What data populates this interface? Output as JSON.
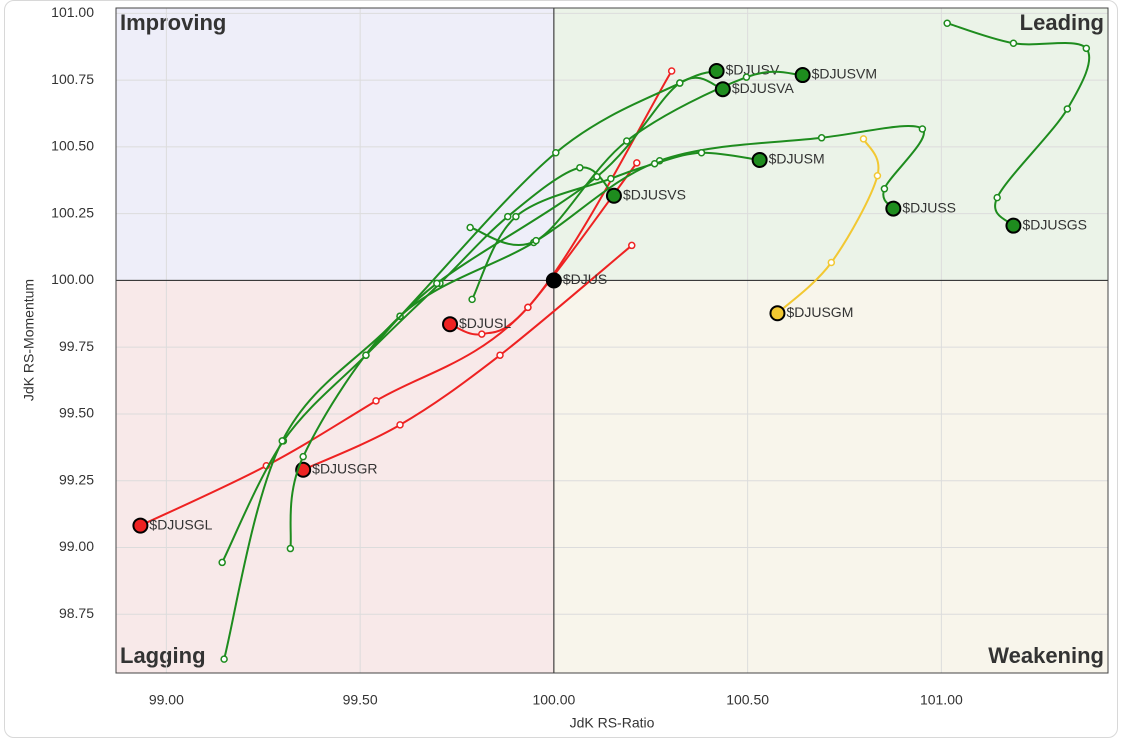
{
  "chart_data": {
    "type": "scatter",
    "xlabel": "JdK RS-Ratio",
    "ylabel": "JdK RS-Momentum",
    "xlim": [
      98.87,
      101.43
    ],
    "ylim": [
      98.53,
      101.02
    ],
    "xticks": [
      {
        "value": 99,
        "label": "99.00"
      },
      {
        "value": 99.5,
        "label": "99.50"
      },
      {
        "value": 100,
        "label": "100.00"
      },
      {
        "value": 100.5,
        "label": "100.50"
      },
      {
        "value": 101,
        "label": "101.00"
      }
    ],
    "yticks": [
      {
        "value": 98.75,
        "label": "98.75"
      },
      {
        "value": 99,
        "label": "99.00"
      },
      {
        "value": 99.25,
        "label": "99.25"
      },
      {
        "value": 99.5,
        "label": "99.50"
      },
      {
        "value": 99.75,
        "label": "99.75"
      },
      {
        "value": 100,
        "label": "100.00"
      },
      {
        "value": 100.25,
        "label": "100.25"
      },
      {
        "value": 100.5,
        "label": "100.50"
      },
      {
        "value": 100.75,
        "label": "100.75"
      },
      {
        "value": 101,
        "label": "101.00"
      }
    ],
    "grid": true,
    "center": [
      100,
      100
    ],
    "quadrants": [
      {
        "label": "Improving",
        "corner": "top-left",
        "color": "#a3a8f2",
        "fill": "#eeeef9"
      },
      {
        "label": "Leading",
        "corner": "top-right",
        "color": "#7cc27c",
        "fill": "#ebf3e8"
      },
      {
        "label": "Lagging",
        "corner": "bottom-left",
        "color": "#f4a0a0",
        "fill": "#f8e9e9"
      },
      {
        "label": "Weakening",
        "corner": "bottom-right",
        "color": "#f2cd45",
        "fill": "#f8f5eb"
      }
    ],
    "series": [
      {
        "name": "$DJUSGL",
        "color": "#ee2222",
        "x": [
          100.304,
          99.933,
          99.541,
          99.258,
          98.933
        ],
        "y": [
          100.784,
          99.899,
          99.549,
          99.306,
          99.082
        ]
      },
      {
        "name": "$DJUSGR",
        "color": "#ee2222",
        "x": [
          100.201,
          99.861,
          99.603,
          99.353
        ],
        "y": [
          100.131,
          99.72,
          99.459,
          99.291
        ]
      },
      {
        "name": "$DJUSL",
        "color": "#ee2222",
        "x": [
          100.214,
          99.933,
          99.814,
          99.732
        ],
        "y": [
          100.44,
          99.899,
          99.799,
          99.836
        ]
      },
      {
        "name": "$DJUS",
        "color": "#000000",
        "x": [
          100
        ],
        "y": [
          100
        ]
      },
      {
        "name": "$DJUSGM",
        "color": "#f2c832",
        "x": [
          100.799,
          100.835,
          100.716,
          100.577
        ],
        "y": [
          100.53,
          100.392,
          100.067,
          99.877
        ]
      },
      {
        "name": "$DJUSGS",
        "color": "#1e8c1e",
        "x": [
          101.015,
          101.186,
          101.374,
          101.325,
          101.144,
          101.186
        ],
        "y": [
          100.963,
          100.888,
          100.869,
          100.642,
          100.31,
          100.205
        ]
      },
      {
        "name": "$DJUSS",
        "color": "#1e8c1e",
        "x": [
          99.32,
          99.353,
          99.603,
          99.948,
          100.273,
          100.691,
          100.951,
          100.853,
          100.876
        ],
        "y": [
          98.996,
          99.34,
          99.866,
          100.142,
          100.448,
          100.534,
          100.567,
          100.343,
          100.269
        ]
      },
      {
        "name": "$DJUSM",
        "color": "#1e8c1e",
        "x": [
          99.789,
          99.902,
          100.147,
          100.26,
          100.381,
          100.531
        ],
        "y": [
          99.929,
          100.239,
          100.381,
          100.437,
          100.478,
          100.451
        ]
      },
      {
        "name": "$DJUSVS",
        "color": "#1e8c1e",
        "x": [
          99.144,
          99.302,
          99.515,
          99.706,
          99.881,
          100.067,
          100.155
        ],
        "y": [
          98.944,
          99.399,
          99.72,
          99.989,
          100.239,
          100.422,
          100.317
        ]
      },
      {
        "name": "$DJUSV",
        "color": "#1e8c1e",
        "x": [
          99.149,
          99.299,
          99.603,
          100.005,
          100.325,
          100.42
        ],
        "y": [
          98.582,
          99.399,
          99.866,
          100.478,
          100.739,
          100.784
        ]
      },
      {
        "name": "$DJUSVM",
        "color": "#1e8c1e",
        "x": [
          99.784,
          99.954,
          100.188,
          100.497,
          100.642
        ],
        "y": [
          100.198,
          100.149,
          100.522,
          100.761,
          100.769
        ]
      },
      {
        "name": "$DJUSVA",
        "color": "#1e8c1e",
        "x": [
          99.515,
          99.698,
          100.111,
          100.325,
          100.436
        ],
        "y": [
          99.72,
          99.989,
          100.388,
          100.739,
          100.716
        ]
      }
    ]
  }
}
